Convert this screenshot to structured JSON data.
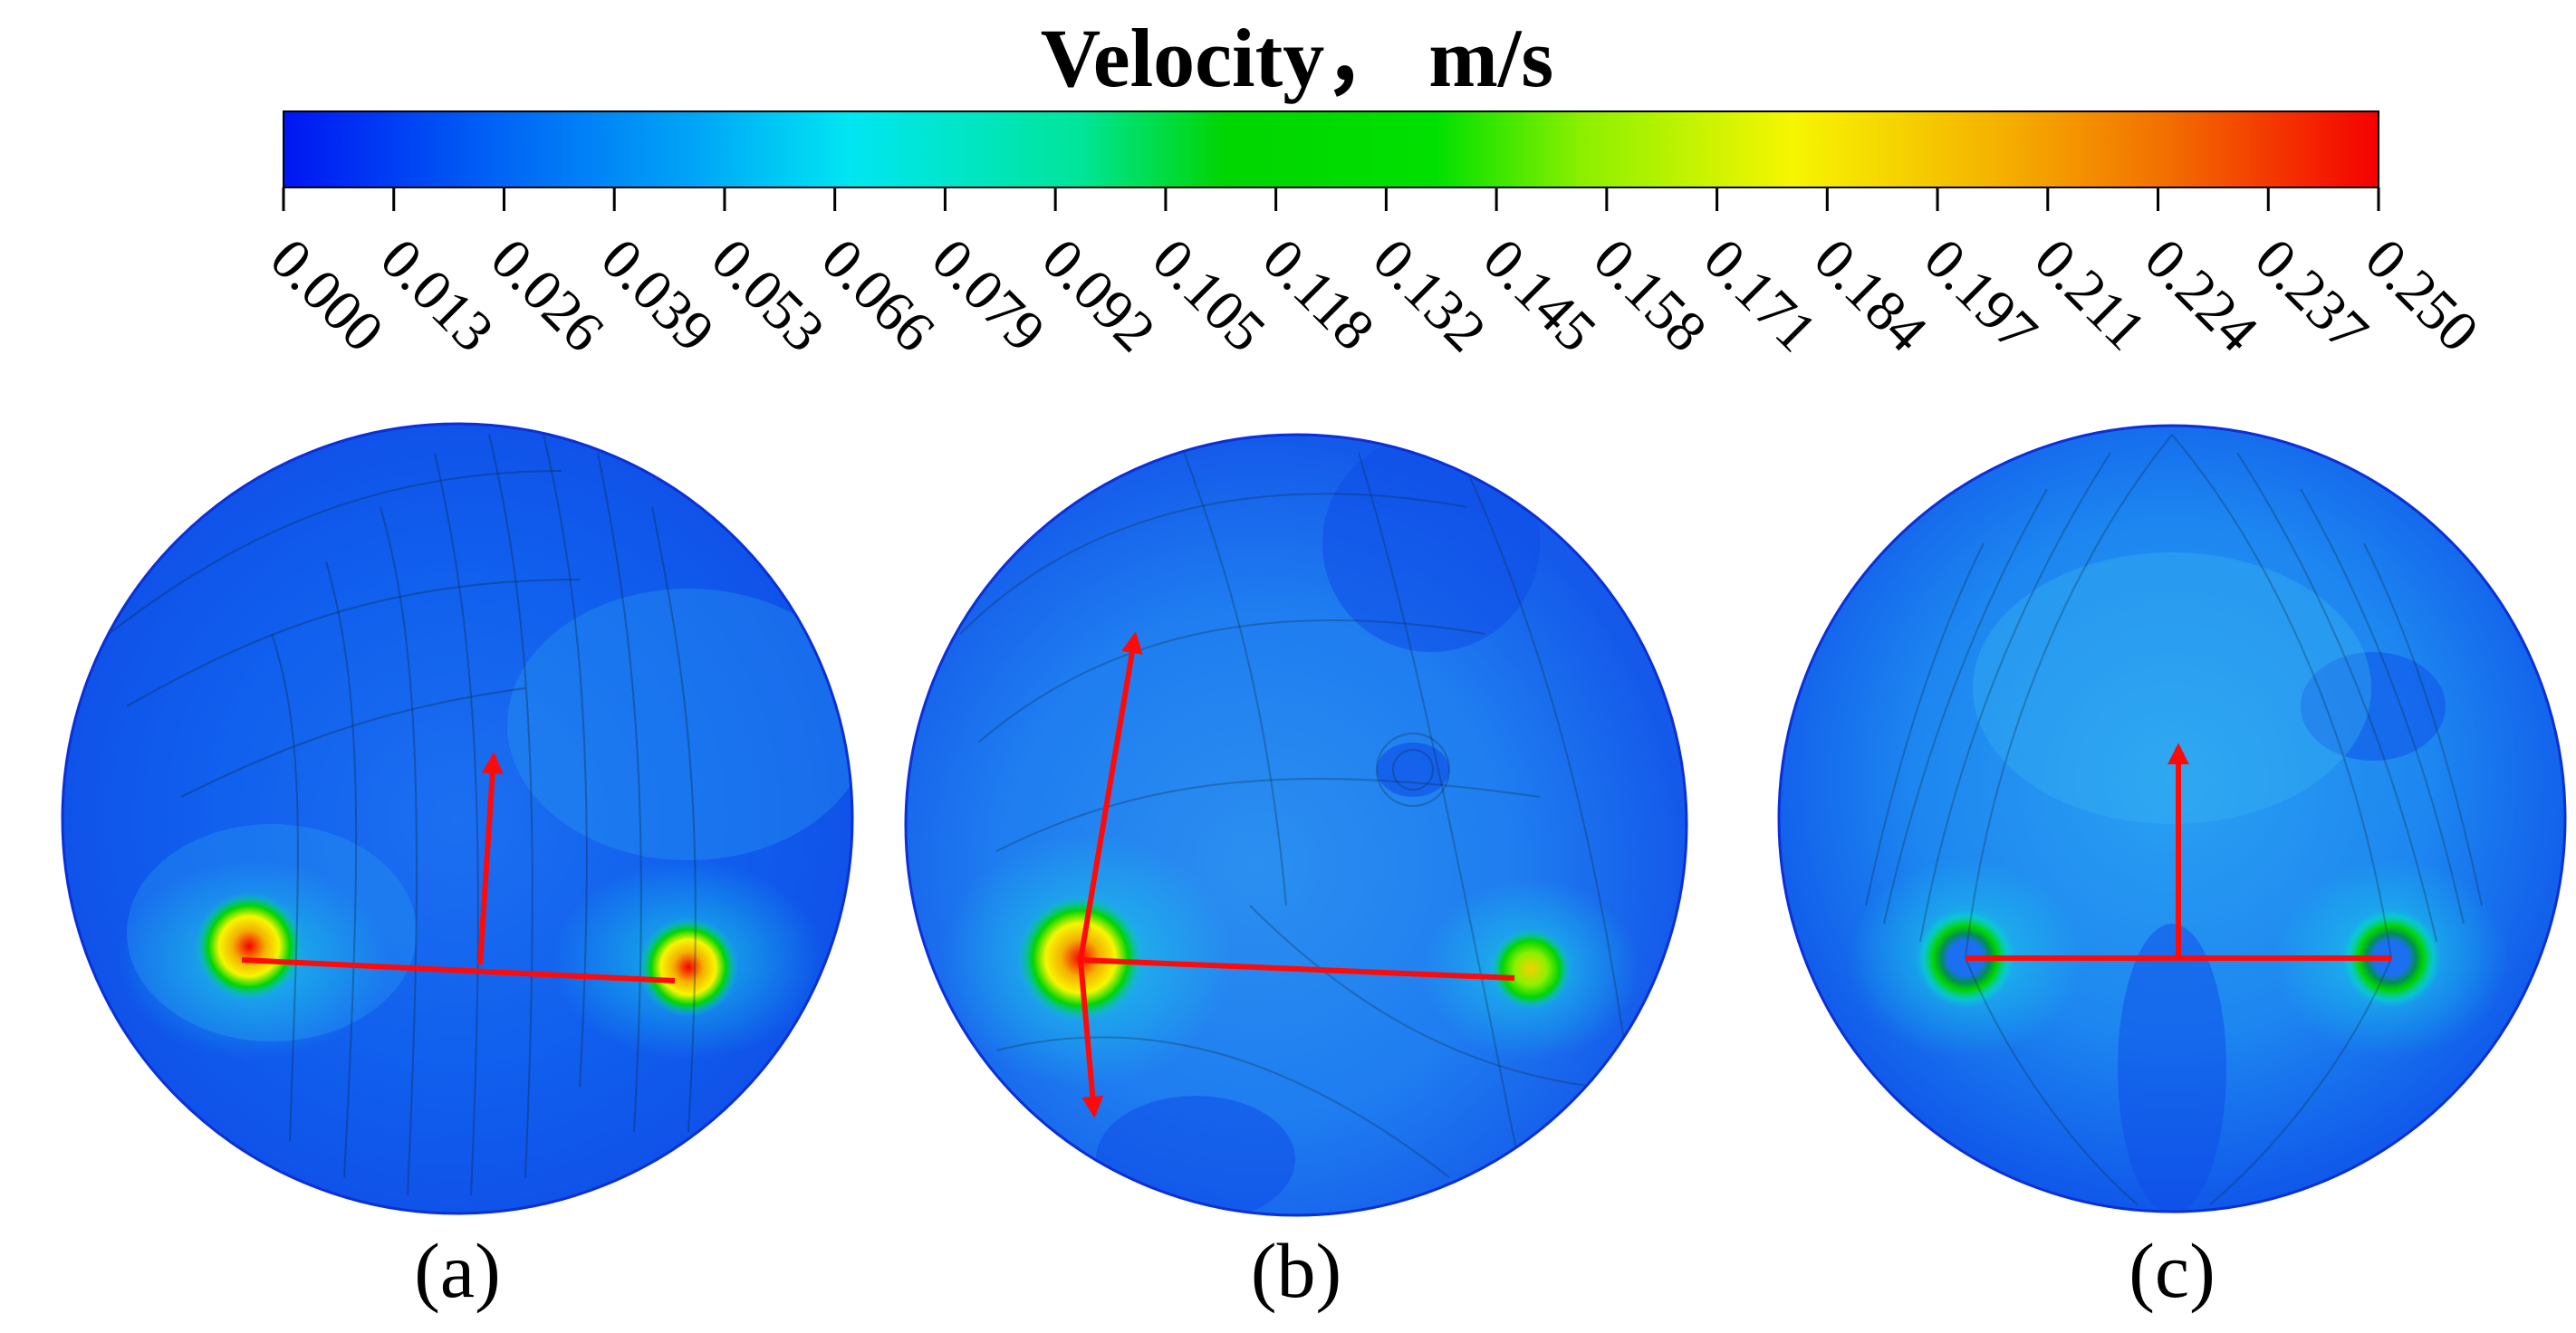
{
  "colorbar": {
    "title": "Velocity， m/s",
    "min": 0.0,
    "max": 0.25,
    "ticks": [
      "0.000",
      "0.013",
      "0.026",
      "0.039",
      "0.053",
      "0.066",
      "0.079",
      "0.092",
      "0.105",
      "0.118",
      "0.132",
      "0.145",
      "0.158",
      "0.171",
      "0.184",
      "0.197",
      "0.211",
      "0.224",
      "0.237",
      "0.250"
    ],
    "gradient_colors": [
      "#0016f2",
      "#0062f5",
      "#00a8f7",
      "#00f2f2",
      "#00e39a",
      "#00d500",
      "#8cf000",
      "#f6f600",
      "#f5b000",
      "#f26e00",
      "#f50000"
    ]
  },
  "panels": [
    {
      "label": "(a)",
      "arrows": [
        "right-direction",
        "center-up"
      ]
    },
    {
      "label": "(b)",
      "arrows": [
        "right-direction",
        "up-tilt",
        "down-tilt"
      ]
    },
    {
      "label": "(c)",
      "arrows": [
        "right-direction",
        "center-up"
      ]
    }
  ]
}
